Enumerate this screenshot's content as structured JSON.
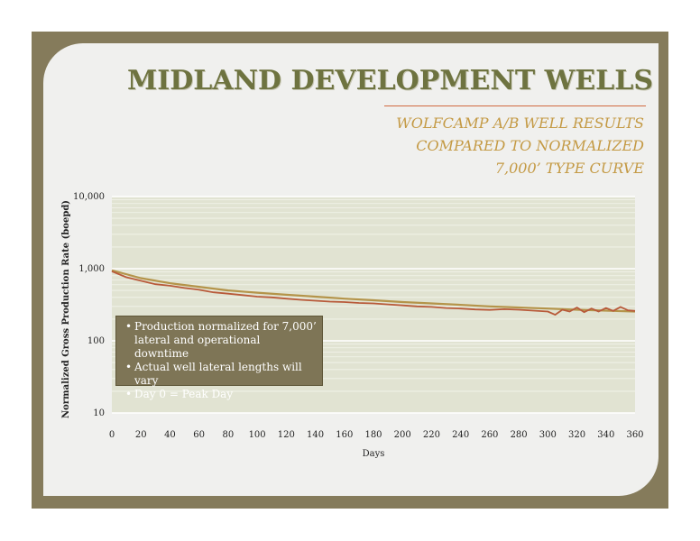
{
  "slide": {
    "title": "MIDLAND DEVELOPMENT WELLS",
    "subtitle_lines": [
      "WOLFCAMP A/B WELL RESULTS",
      "COMPARED TO NORMALIZED",
      "7,000’ TYPE CURVE"
    ]
  },
  "callout": {
    "bullets": [
      "Production normalized for 7,000’ lateral and operational downtime",
      "Actual well lateral lengths will vary",
      "Day 0 = Peak Day"
    ]
  },
  "colors": {
    "frame": "#857b5b",
    "plot_bg": "#e1e3d2",
    "type_curve": "#b4944a",
    "well_results": "#b85a3a",
    "title": "#6e7340",
    "subtitle": "#c49a45"
  },
  "chart_data": {
    "type": "line",
    "xlabel": "Days",
    "ylabel": "Normalized Gross Production Rate (boepd)",
    "xlim": [
      0,
      360
    ],
    "ylim": [
      10,
      10000
    ],
    "yscale": "log",
    "x_ticks": [
      0,
      20,
      40,
      60,
      80,
      100,
      120,
      140,
      160,
      180,
      200,
      220,
      240,
      260,
      280,
      300,
      320,
      340,
      360
    ],
    "y_ticks": [
      10,
      100,
      1000,
      10000
    ],
    "y_tick_labels": [
      "10",
      "100",
      "1,000",
      "10,000"
    ],
    "grid": true,
    "legend": "none",
    "series": [
      {
        "role": "type_curve",
        "x": [
          0,
          20,
          40,
          60,
          80,
          100,
          120,
          140,
          160,
          180,
          200,
          220,
          240,
          260,
          280,
          300,
          320,
          340,
          360
        ],
        "values": [
          950,
          740,
          630,
          560,
          500,
          465,
          435,
          410,
          385,
          365,
          345,
          330,
          315,
          300,
          290,
          280,
          270,
          262,
          255
        ]
      },
      {
        "role": "well_results",
        "x": [
          0,
          10,
          20,
          30,
          40,
          50,
          60,
          70,
          80,
          90,
          100,
          110,
          120,
          130,
          140,
          150,
          160,
          170,
          180,
          190,
          200,
          210,
          220,
          230,
          240,
          250,
          260,
          270,
          280,
          290,
          300,
          305,
          310,
          315,
          320,
          325,
          330,
          335,
          340,
          345,
          350,
          355,
          360
        ],
        "values": [
          920,
          760,
          680,
          610,
          580,
          540,
          510,
          470,
          450,
          430,
          410,
          400,
          385,
          370,
          360,
          350,
          345,
          335,
          330,
          320,
          310,
          300,
          295,
          285,
          280,
          272,
          268,
          275,
          270,
          262,
          255,
          230,
          270,
          255,
          290,
          250,
          280,
          255,
          285,
          260,
          295,
          265,
          260
        ]
      }
    ]
  }
}
